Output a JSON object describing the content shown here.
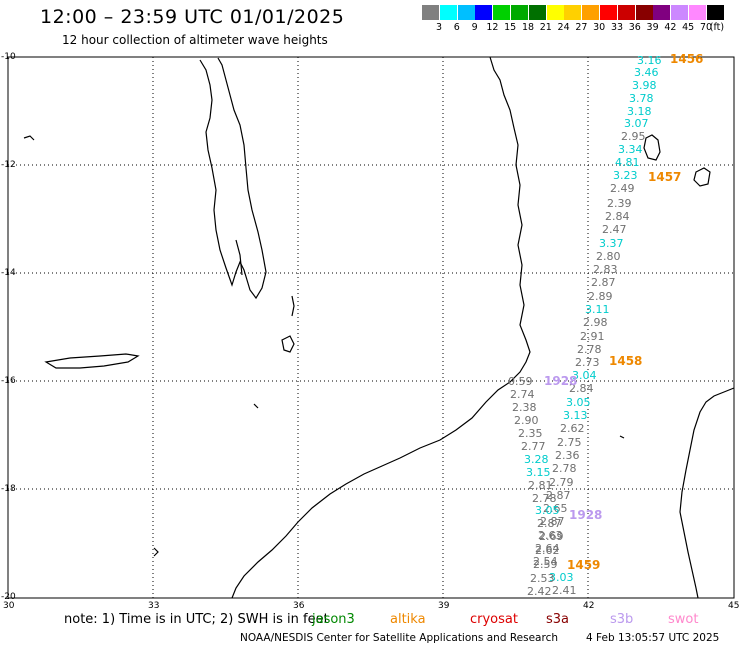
{
  "header": {
    "title": "12:00 – 23:59 UTC 01/01/2025",
    "subtitle": "12 hour collection of altimeter wave heights"
  },
  "legend": {
    "colors": [
      "#808080",
      "#00ffff",
      "#00bfff",
      "#0000ff",
      "#00d000",
      "#00aa00",
      "#007000",
      "#ffff00",
      "#ffd000",
      "#ffa000",
      "#ff0000",
      "#cc0000",
      "#880000",
      "#800080",
      "#cc88ff",
      "#ff88ff",
      "#000000"
    ],
    "ticks": [
      "3",
      "6",
      "9",
      "12",
      "15",
      "18",
      "21",
      "24",
      "27",
      "30",
      "33",
      "36",
      "39",
      "42",
      "45",
      "70"
    ],
    "unit": "(ft)"
  },
  "axes": {
    "lat_labels": [
      "-10",
      "-12",
      "-14",
      "-16",
      "-18",
      "-20"
    ],
    "lon_labels": [
      "30",
      "33",
      "36",
      "39",
      "42",
      "45"
    ]
  },
  "wave_heights": [
    {
      "v": "3.16",
      "c": "#00cccc"
    },
    {
      "v": "3.46",
      "c": "#00cccc"
    },
    {
      "v": "3.98",
      "c": "#00cccc"
    },
    {
      "v": "3.78",
      "c": "#00cccc"
    },
    {
      "v": "3.18",
      "c": "#00cccc"
    },
    {
      "v": "3.07",
      "c": "#00cccc"
    },
    {
      "v": "2.95",
      "c": "#707070"
    },
    {
      "v": "3.34",
      "c": "#00cccc"
    },
    {
      "v": "4.81",
      "c": "#00cccc"
    },
    {
      "v": "3.23",
      "c": "#00cccc"
    },
    {
      "v": "2.49",
      "c": "#707070"
    },
    {
      "v": "2.39",
      "c": "#707070"
    },
    {
      "v": "2.84",
      "c": "#707070"
    },
    {
      "v": "2.47",
      "c": "#707070"
    },
    {
      "v": "3.37",
      "c": "#00cccc"
    },
    {
      "v": "2.80",
      "c": "#707070"
    },
    {
      "v": "2.83",
      "c": "#707070"
    },
    {
      "v": "2.87",
      "c": "#707070"
    },
    {
      "v": "2.89",
      "c": "#707070"
    },
    {
      "v": "3.11",
      "c": "#00cccc"
    },
    {
      "v": "2.98",
      "c": "#707070"
    },
    {
      "v": "2.91",
      "c": "#707070"
    },
    {
      "v": "2.78",
      "c": "#707070"
    },
    {
      "v": "2.73",
      "c": "#707070"
    },
    {
      "v": "3.04",
      "c": "#00cccc"
    },
    {
      "v": "2.84",
      "c": "#707070"
    },
    {
      "v": "3.05",
      "c": "#00cccc"
    },
    {
      "v": "3.13",
      "c": "#00cccc"
    },
    {
      "v": "2.62",
      "c": "#707070"
    },
    {
      "v": "2.75",
      "c": "#707070"
    },
    {
      "v": "2.36",
      "c": "#707070"
    },
    {
      "v": "2.78",
      "c": "#707070"
    },
    {
      "v": "2.79",
      "c": "#707070"
    },
    {
      "v": "2.87",
      "c": "#707070"
    },
    {
      "v": "2.65",
      "c": "#707070"
    },
    {
      "v": "2.87",
      "c": "#707070"
    },
    {
      "v": "2.63",
      "c": "#707070"
    },
    {
      "v": "2.64",
      "c": "#707070"
    },
    {
      "v": "2.54",
      "c": "#707070"
    },
    {
      "v": "3.03",
      "c": "#00cccc"
    },
    {
      "v": "2.41",
      "c": "#707070"
    },
    {
      "v": "0.59",
      "c": "#707070"
    },
    {
      "v": "2.74",
      "c": "#707070"
    },
    {
      "v": "2.38",
      "c": "#707070"
    },
    {
      "v": "2.90",
      "c": "#707070"
    },
    {
      "v": "2.35",
      "c": "#707070"
    },
    {
      "v": "2.77",
      "c": "#707070"
    },
    {
      "v": "3.28",
      "c": "#00cccc"
    },
    {
      "v": "3.15",
      "c": "#00cccc"
    },
    {
      "v": "2.81",
      "c": "#707070"
    },
    {
      "v": "2.78",
      "c": "#707070"
    },
    {
      "v": "3.05",
      "c": "#00cccc"
    },
    {
      "v": "2.87",
      "c": "#707070"
    },
    {
      "v": "2.69",
      "c": "#707070"
    },
    {
      "v": "2.62",
      "c": "#707070"
    },
    {
      "v": "2.59",
      "c": "#707070"
    },
    {
      "v": "2.53",
      "c": "#707070"
    },
    {
      "v": "2.42",
      "c": "#707070"
    }
  ],
  "passes": [
    {
      "id": "1456",
      "c": "#ee8800"
    },
    {
      "id": "1457",
      "c": "#ee8800"
    },
    {
      "id": "1458",
      "c": "#ee8800"
    },
    {
      "id": "1459",
      "c": "#ee8800"
    },
    {
      "id": "1928",
      "c": "#bb99ee"
    },
    {
      "id": "1928",
      "c": "#bb99ee"
    }
  ],
  "note": {
    "text": "note: 1) Time is in UTC; 2) SWH is in feet"
  },
  "satellites": [
    {
      "name": "jason3",
      "c": "#008800"
    },
    {
      "name": "altika",
      "c": "#ee8800"
    },
    {
      "name": "cryosat",
      "c": "#dd0000"
    },
    {
      "name": "s3a",
      "c": "#880000"
    },
    {
      "name": "s3b",
      "c": "#bb99ee"
    },
    {
      "name": "swot",
      "c": "#ff88cc"
    }
  ],
  "footer": {
    "credit": "NOAA/NESDIS Center for Satellite Applications and Research",
    "timestamp": "4 Feb 13:05:57 UTC 2025"
  }
}
